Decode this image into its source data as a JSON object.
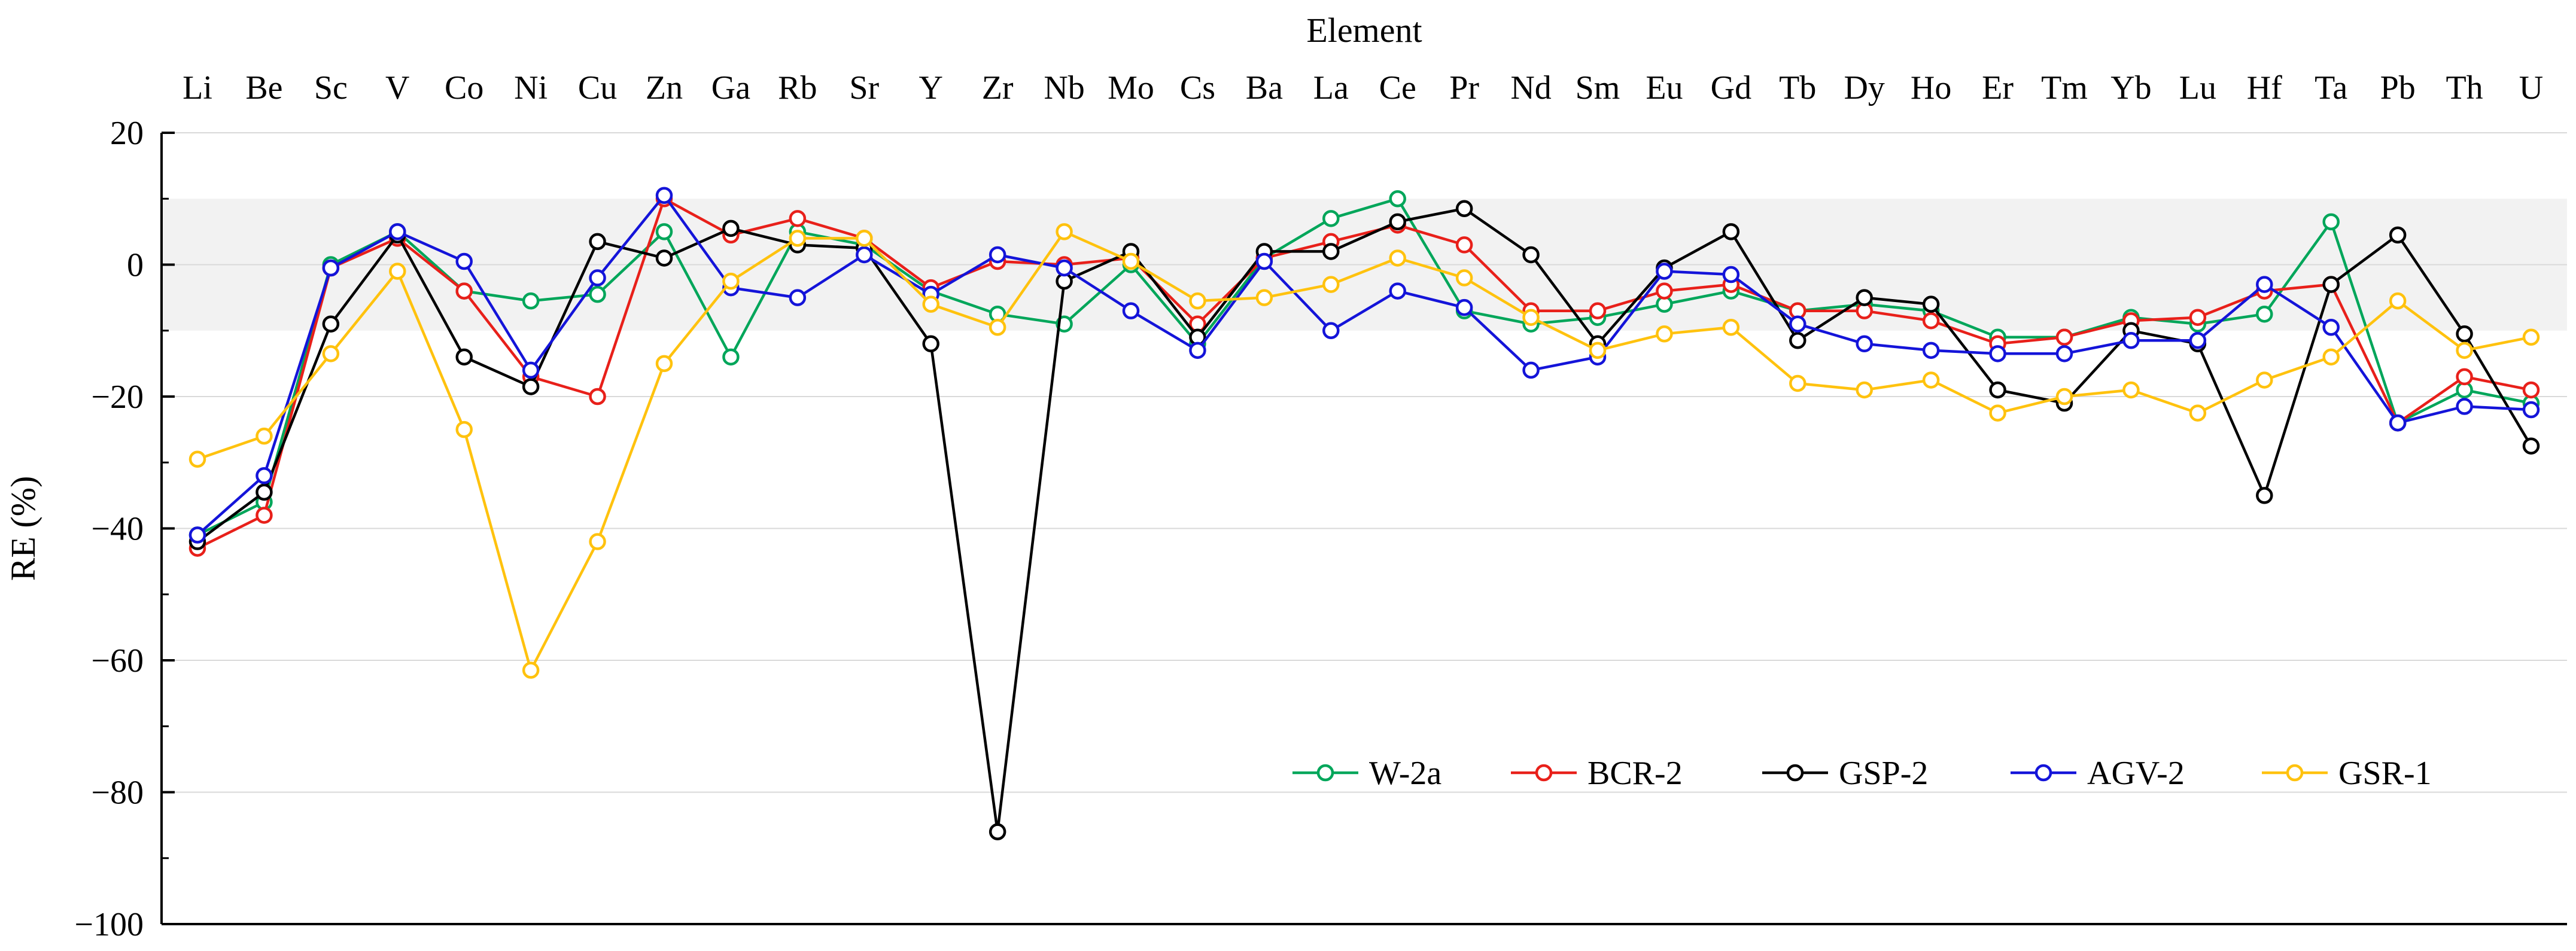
{
  "chart_data": {
    "type": "line",
    "title": "",
    "xlabel": "Element",
    "ylabel": "RE (%)",
    "ylim": [
      -100,
      20
    ],
    "yticks": [
      20,
      0,
      -20,
      -40,
      -60,
      -80,
      -100
    ],
    "ytick_labels": [
      "20",
      "0",
      "−20",
      "−40",
      "−60",
      "−80",
      "−100"
    ],
    "shaded_band": [
      -10,
      10
    ],
    "legend_position": "lower-right",
    "categories": [
      "Li",
      "Be",
      "Sc",
      "V",
      "Co",
      "Ni",
      "Cu",
      "Zn",
      "Ga",
      "Rb",
      "Sr",
      "Y",
      "Zr",
      "Nb",
      "Mo",
      "Cs",
      "Ba",
      "La",
      "Ce",
      "Pr",
      "Nd",
      "Sm",
      "Eu",
      "Gd",
      "Tb",
      "Dy",
      "Ho",
      "Er",
      "Tm",
      "Yb",
      "Lu",
      "Hf",
      "Ta",
      "Pb",
      "Th",
      "U"
    ],
    "series": [
      {
        "name": "W-2a",
        "color": "#00a65a",
        "values": [
          -41,
          -36,
          0,
          5,
          -4,
          -5.5,
          -4.5,
          5,
          -14,
          5,
          3,
          -4,
          -7.5,
          -9,
          0,
          -12,
          1,
          7,
          10,
          -7,
          -9,
          -8,
          -6,
          -4,
          -7,
          -6,
          -7,
          -11,
          -11,
          -8,
          -9,
          -7.5,
          6.5,
          -24,
          -19,
          -21
        ]
      },
      {
        "name": "BCR-2",
        "color": "#e8201a",
        "values": [
          -43,
          -38,
          -0.5,
          4,
          -4,
          -17,
          -20,
          10,
          4.5,
          7,
          4,
          -3.5,
          0.5,
          0,
          1,
          -9,
          1,
          3.5,
          6,
          3,
          -7,
          -7,
          -4,
          -3,
          -7,
          -7,
          -8.5,
          -12,
          -11,
          -8.5,
          -8,
          -4,
          -3,
          -24,
          -17,
          -19
        ]
      },
      {
        "name": "GSP-2",
        "color": "#000000",
        "values": [
          -42,
          -34.5,
          -9,
          4.5,
          -14,
          -18.5,
          3.5,
          1,
          5.5,
          3,
          2.5,
          -12,
          -86,
          -2.5,
          2,
          -11,
          2,
          2,
          6.5,
          8.5,
          1.5,
          -12,
          -0.5,
          5,
          -11.5,
          -5,
          -6,
          -19,
          -21,
          -10,
          -12,
          -35,
          -3,
          4.5,
          -10.5,
          -27.5
        ]
      },
      {
        "name": "AGV-2",
        "color": "#1414d9",
        "values": [
          -41,
          -32,
          -0.5,
          5,
          0.5,
          -16,
          -2,
          10.5,
          -3.5,
          -5,
          1.5,
          -4.5,
          1.5,
          -0.5,
          -7,
          -13,
          0.5,
          -10,
          -4,
          -6.5,
          -16,
          -14,
          -1,
          -1.5,
          -9,
          -12,
          -13,
          -13.5,
          -13.5,
          -11.5,
          -11.5,
          -3,
          -9.5,
          -24,
          -21.5,
          -22
        ]
      },
      {
        "name": "GSR-1",
        "color": "#ffc20e",
        "values": [
          -29.5,
          -26,
          -13.5,
          -1,
          -25,
          -61.5,
          -42,
          -15,
          -2.5,
          4,
          4,
          -6,
          -9.5,
          5,
          0.5,
          -5.5,
          -5,
          -3,
          1,
          -2,
          -8,
          -13,
          -10.5,
          -9.5,
          -18,
          -19,
          -17.5,
          -22.5,
          -20,
          -19,
          -22.5,
          -17.5,
          -14,
          -5.5,
          -13,
          -11
        ]
      }
    ]
  }
}
